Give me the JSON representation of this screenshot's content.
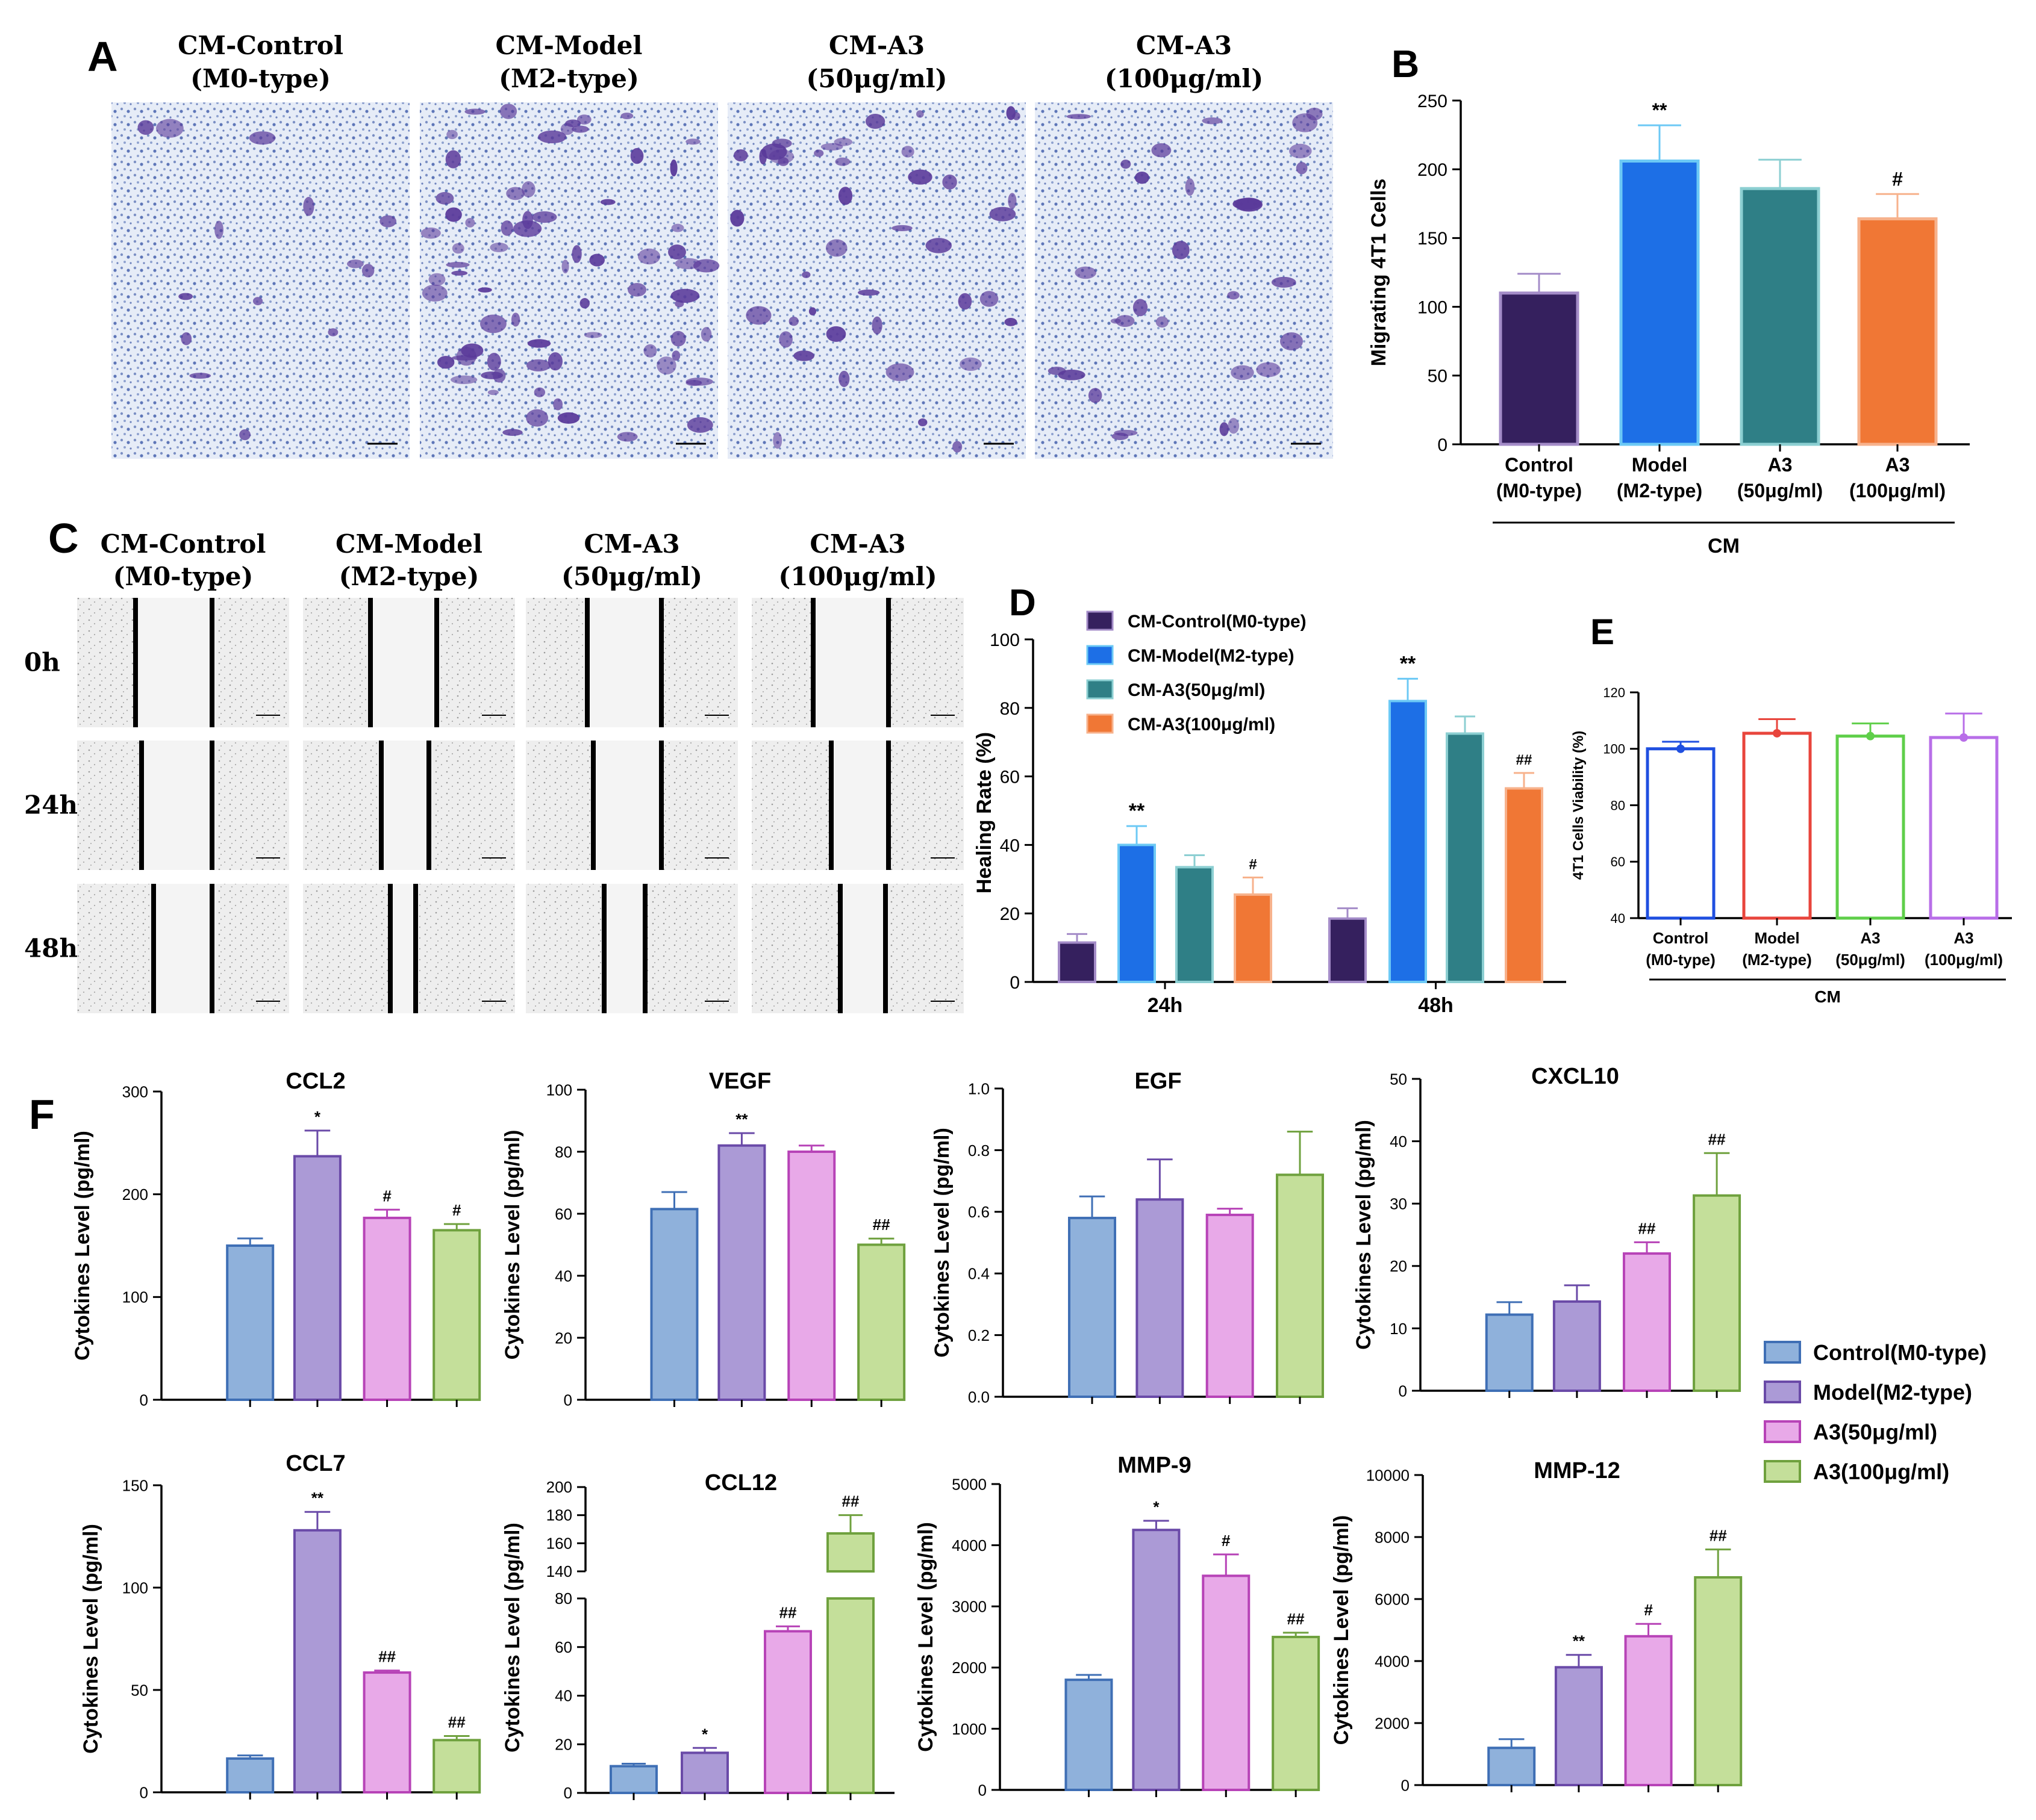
{
  "colors": {
    "control": "#8fb1db",
    "model": "#ab9ad6",
    "a3_50": "#e8a9e8",
    "a3_100": "#c4df9a",
    "control_edge": "#3f6fb5",
    "model_edge": "#6a4aa8",
    "a3_50_edge": "#b743b7",
    "a3_100_edge": "#6fa13e",
    "b_control": "#35205e",
    "b_model": "#1d6fe6",
    "b_a3_50": "#2f7f86",
    "b_a3_100": "#f07735",
    "stain": "#5a3a9a",
    "field": "#dfe6f5"
  },
  "panel_letters": [
    "A",
    "B",
    "C",
    "D",
    "E",
    "F"
  ],
  "panel_a": {
    "labels": [
      [
        "CM-Control",
        "(M0-type)"
      ],
      [
        "CM-Model",
        "(M2-type)"
      ],
      [
        "CM-A3",
        "(50μg/ml)"
      ],
      [
        "CM-A3",
        "(100μg/ml)"
      ]
    ],
    "stain_density": [
      0.12,
      0.6,
      0.35,
      0.25
    ]
  },
  "panel_c": {
    "labels": [
      [
        "CM-Control",
        "(M0-type)"
      ],
      [
        "CM-Model",
        "(M2-type)"
      ],
      [
        "CM-A3",
        "(50μg/ml)"
      ],
      [
        "CM-A3",
        "(100μg/ml)"
      ]
    ],
    "rows": [
      "0h",
      "24h",
      "48h"
    ]
  },
  "chart_data": [
    {
      "id": "B",
      "type": "bar",
      "title": "",
      "ylabel": "Migrating 4T1 Cells",
      "ylim": [
        0,
        250
      ],
      "yticks": [
        0,
        50,
        100,
        150,
        200,
        250
      ],
      "categories": [
        [
          "Control",
          "(M0-type)"
        ],
        [
          "Model",
          "(M2-type)"
        ],
        [
          "A3",
          "(50μg/ml)"
        ],
        [
          "A3",
          "(100μg/ml)"
        ]
      ],
      "group_label": "CM",
      "values": [
        110,
        206,
        186,
        164
      ],
      "errors": [
        14,
        26,
        21,
        18
      ],
      "sig": [
        "",
        "**",
        "",
        "#"
      ]
    },
    {
      "id": "D",
      "type": "bar",
      "ylabel": "Healing Rate (%)",
      "ylim": [
        0,
        100
      ],
      "yticks": [
        0,
        20,
        40,
        60,
        80,
        100
      ],
      "categories": [
        "24h",
        "48h"
      ],
      "legend_position": "top-left",
      "series": [
        {
          "name": "CM-Control(M0-type)",
          "values": [
            11.5,
            18.5
          ],
          "errors": [
            2.5,
            3.0
          ],
          "sig": [
            "",
            ""
          ]
        },
        {
          "name": "CM-Model(M2-type)",
          "values": [
            40,
            82
          ],
          "errors": [
            5.5,
            6.5
          ],
          "sig": [
            "**",
            "**"
          ]
        },
        {
          "name": "CM-A3(50μg/ml)",
          "values": [
            33.5,
            72.5
          ],
          "errors": [
            3.5,
            5.0
          ],
          "sig": [
            "",
            ""
          ]
        },
        {
          "name": "CM-A3(100μg/ml)",
          "values": [
            25.5,
            56.5
          ],
          "errors": [
            5.0,
            4.5
          ],
          "sig": [
            "#",
            "##"
          ]
        }
      ]
    },
    {
      "id": "E",
      "type": "bar",
      "ylabel": "4T1 Cells Viability (%)",
      "ylim": [
        40,
        120
      ],
      "yticks": [
        40,
        60,
        80,
        100,
        120
      ],
      "categories": [
        [
          "Control",
          "(M0-type)"
        ],
        [
          "Model",
          "(M2-type)"
        ],
        [
          "A3",
          "(50μg/ml)"
        ],
        [
          "A3",
          "(100μg/ml)"
        ]
      ],
      "group_label": "CM",
      "values": [
        100,
        105.5,
        104.5,
        104
      ],
      "errors": [
        2.5,
        5.0,
        4.5,
        8.5
      ]
    },
    {
      "id": "F1",
      "type": "bar",
      "title": "CCL2",
      "ylabel": "Cytokines Level (pg/ml)",
      "ylim": [
        0,
        300
      ],
      "yticks": [
        0,
        100,
        200,
        300
      ],
      "values": [
        150,
        237,
        177,
        165
      ],
      "errors": [
        7,
        25,
        8,
        6
      ],
      "sig": [
        "",
        "*",
        "#",
        "#"
      ]
    },
    {
      "id": "F2",
      "type": "bar",
      "title": "VEGF",
      "ylabel": "Cytokines Level (pg/ml)",
      "ylim": [
        0,
        100
      ],
      "yticks": [
        0,
        20,
        40,
        60,
        80,
        100
      ],
      "values": [
        61.5,
        82,
        80,
        50
      ],
      "errors": [
        5.5,
        4,
        2,
        2
      ],
      "sig": [
        "",
        "**",
        "",
        "##"
      ]
    },
    {
      "id": "F3",
      "type": "bar",
      "title": "EGF",
      "ylabel": "Cytokines Level (pg/ml)",
      "ylim": [
        0,
        1.0
      ],
      "yticks": [
        "0.0",
        "0.2",
        "0.4",
        "0.6",
        "0.8",
        "1.0"
      ],
      "values": [
        0.58,
        0.64,
        0.59,
        0.72
      ],
      "errors": [
        0.07,
        0.13,
        0.02,
        0.14
      ],
      "sig": [
        "",
        "",
        "",
        ""
      ]
    },
    {
      "id": "F4",
      "type": "bar",
      "title": "CXCL10",
      "ylabel": "Cytokines Level (pg/ml)",
      "ylim": [
        0,
        50
      ],
      "yticks": [
        0,
        10,
        20,
        30,
        40,
        50
      ],
      "values": [
        12.2,
        14.3,
        22,
        31.3
      ],
      "errors": [
        2,
        2.6,
        1.8,
        6.8
      ],
      "sig": [
        "",
        "",
        "##",
        "##"
      ]
    },
    {
      "id": "F5",
      "type": "bar",
      "title": "CCL7",
      "ylabel": "Cytokines Level (pg/ml)",
      "ylim": [
        0,
        150
      ],
      "yticks": [
        0,
        50,
        100,
        150
      ],
      "values": [
        16.5,
        128,
        58.5,
        25.5
      ],
      "errors": [
        1.5,
        9,
        1,
        2
      ],
      "sig": [
        "",
        "**",
        "##",
        "##"
      ]
    },
    {
      "id": "F6",
      "type": "bar",
      "title": "CCL12",
      "ylabel": "Cytokines Level (pg/ml)",
      "axis_break": [
        80,
        140
      ],
      "yticks_low": [
        0,
        20,
        40,
        60,
        80
      ],
      "yticks_high": [
        140,
        160,
        180,
        200
      ],
      "values": [
        11,
        16.5,
        66.5,
        167
      ],
      "errors": [
        1,
        2,
        2,
        13
      ],
      "sig": [
        "",
        "*",
        "##",
        "##"
      ]
    },
    {
      "id": "F7",
      "type": "bar",
      "title": "MMP-9",
      "ylabel": "Cytokines Level (pg/ml)",
      "ylim": [
        0,
        5000
      ],
      "yticks": [
        0,
        1000,
        2000,
        3000,
        4000,
        5000
      ],
      "values": [
        1800,
        4250,
        3500,
        2500
      ],
      "errors": [
        80,
        150,
        350,
        70
      ],
      "sig": [
        "",
        "*",
        "#",
        "##"
      ]
    },
    {
      "id": "F8",
      "type": "bar",
      "title": "MMP-12",
      "ylabel": "Cytokines Level (pg/ml)",
      "ylim": [
        0,
        10000
      ],
      "yticks": [
        0,
        2000,
        4000,
        6000,
        8000,
        10000
      ],
      "values": [
        1200,
        3800,
        4800,
        6700
      ],
      "errors": [
        280,
        400,
        400,
        900
      ],
      "sig": [
        "",
        "**",
        "#",
        "##"
      ]
    }
  ],
  "legend_f": [
    "Control(M0-type)",
    "Model(M2-type)",
    "A3(50μg/ml)",
    "A3(100μg/ml)"
  ]
}
